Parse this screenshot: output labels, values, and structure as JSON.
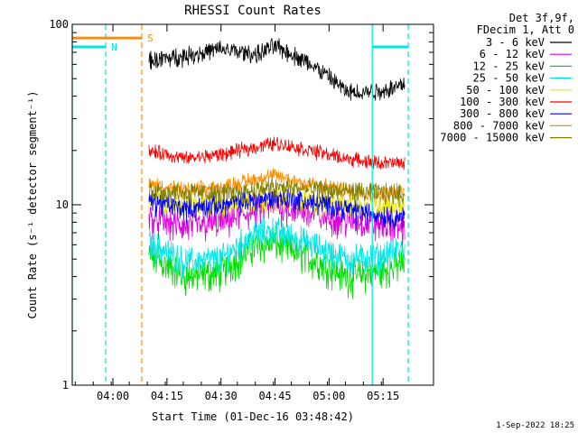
{
  "chart_data": {
    "type": "line",
    "title": "RHESSI Count Rates",
    "xlabel": "Start Time (01-Dec-16 03:48:42)",
    "ylabel": "Count Rate (s⁻¹ detector segment⁻¹)",
    "y_scale": "log",
    "ylim": [
      1,
      100
    ],
    "xlim": [
      "03:48:42",
      "05:29:00"
    ],
    "x_ticks": [
      "04:00",
      "04:15",
      "04:30",
      "04:45",
      "05:00",
      "05:15"
    ],
    "y_ticks": [
      "1",
      "10",
      "100"
    ],
    "header_lines": [
      "Det 3f,9f,",
      "FDecim 1, Att 0"
    ],
    "series": [
      {
        "name": "3 - 6 keV",
        "color": "#000000",
        "x": [
          "04:10",
          "04:20",
          "04:30",
          "04:40",
          "04:45",
          "04:55",
          "05:05",
          "05:15",
          "05:21"
        ],
        "values": [
          63,
          67,
          73,
          68,
          76,
          60,
          42,
          43,
          47
        ]
      },
      {
        "name": "6 - 12 keV",
        "color": "#dd00dd",
        "x": [
          "04:10",
          "04:20",
          "04:30",
          "04:45",
          "05:00",
          "05:10",
          "05:21"
        ],
        "values": [
          8.5,
          7.5,
          8.0,
          10.0,
          8.5,
          8.0,
          7.5
        ]
      },
      {
        "name": "12 - 25 keV",
        "color": "#00dd00",
        "x": [
          "04:10",
          "04:20",
          "04:30",
          "04:40",
          "04:45",
          "04:55",
          "05:05",
          "05:15",
          "05:21"
        ],
        "values": [
          5.2,
          4.0,
          4.2,
          6.0,
          6.2,
          5.0,
          4.0,
          4.3,
          4.8
        ]
      },
      {
        "name": "25 - 50 keV",
        "color": "#00e5e5",
        "x": [
          "04:10",
          "04:20",
          "04:30",
          "04:40",
          "04:45",
          "04:55",
          "05:05",
          "05:15",
          "05:21"
        ],
        "values": [
          6.2,
          4.8,
          5.0,
          7.0,
          7.2,
          6.0,
          5.0,
          5.2,
          5.8
        ]
      },
      {
        "name": "50 - 100 keV",
        "color": "#e5e500",
        "x": [
          "04:10",
          "04:30",
          "04:45",
          "05:00",
          "05:21"
        ],
        "values": [
          10.5,
          10.0,
          11.0,
          10.0,
          10.0
        ]
      },
      {
        "name": "100 - 300 keV",
        "color": "#ff0000",
        "x": [
          "04:10",
          "04:20",
          "04:30",
          "04:40",
          "04:45",
          "04:55",
          "05:05",
          "05:15",
          "05:21"
        ],
        "values": [
          20,
          18,
          19,
          21,
          22,
          20,
          18,
          17,
          17
        ]
      },
      {
        "name": "300 - 800 keV",
        "color": "#0000ff",
        "x": [
          "04:10",
          "04:20",
          "04:30",
          "04:45",
          "05:00",
          "05:10",
          "05:21"
        ],
        "values": [
          10.5,
          9.5,
          10.0,
          11.0,
          10.0,
          9.0,
          8.5
        ]
      },
      {
        "name": "800 - 7000 keV",
        "color": "#ff8c00",
        "x": [
          "04:10",
          "04:20",
          "04:30",
          "04:40",
          "04:45",
          "04:55",
          "05:05",
          "05:15",
          "05:21"
        ],
        "values": [
          13,
          12,
          12.5,
          14,
          14.5,
          13,
          12,
          11.5,
          12
        ]
      },
      {
        "name": "7000 - 15000 keV",
        "color": "#808000",
        "x": [
          "04:10",
          "04:30",
          "04:45",
          "05:00",
          "05:21"
        ],
        "values": [
          12,
          11.5,
          12.5,
          12,
          11.5
        ]
      }
    ],
    "markers": [
      {
        "time": "03:48:42",
        "color": "#00e5e5",
        "style": "solid"
      },
      {
        "time": "03:58:00",
        "color": "#00e5e5",
        "style": "dashed"
      },
      {
        "time": "04:08:00",
        "color": "#ff8c00",
        "style": "dashed"
      },
      {
        "time": "05:12:00",
        "color": "#00e5e5",
        "style": "solid"
      },
      {
        "time": "05:22:00",
        "color": "#00e5e5",
        "style": "dashed"
      }
    ],
    "bars": [
      {
        "label": "N",
        "color": "#00e5e5",
        "start": "03:48:42",
        "end": "03:58:00",
        "level": 75
      },
      {
        "label": "S",
        "color": "#ff8c00",
        "start": "03:48:42",
        "end": "04:08:00",
        "level": 84
      },
      {
        "label": "",
        "color": "#00e5e5",
        "start": "05:12:00",
        "end": "05:22:00",
        "level": 75
      }
    ],
    "footer": "1-Sep-2022 18:25"
  }
}
